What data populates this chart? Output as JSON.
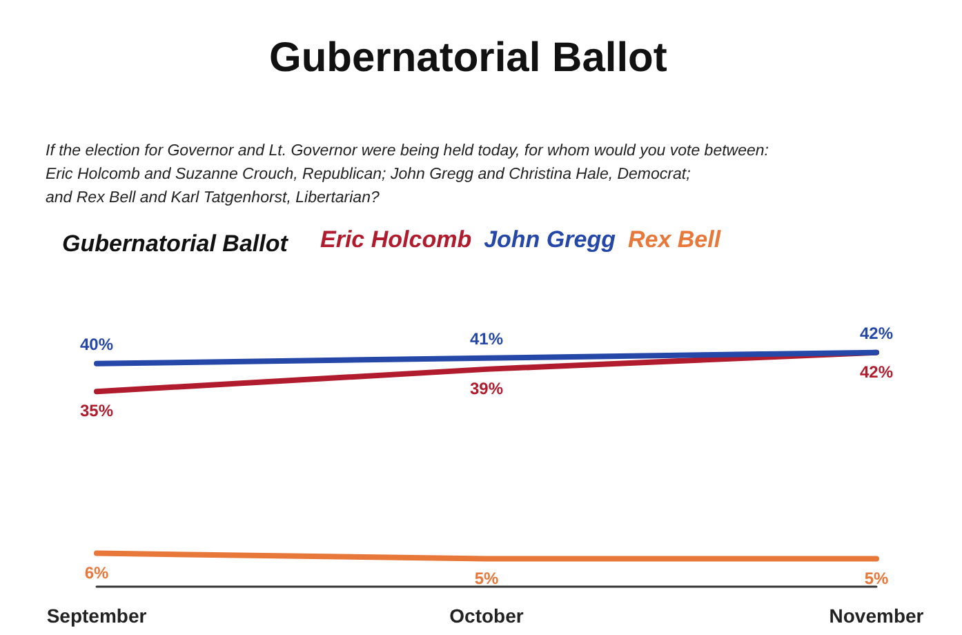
{
  "chart_data": {
    "type": "line",
    "title": "Gubernatorial Ballot",
    "subtitle": "If the election for Governor and Lt. Governor were being held today, for whom would you vote between:\nEric Holcomb and Suzanne Crouch, Republican; John Gregg and Christina Hale, Democrat;\nand Rex Bell and Karl Tatgenhorst, Libertarian?",
    "legend_title": "Gubernatorial Ballot",
    "legend": "top",
    "categories": [
      "September",
      "October",
      "November"
    ],
    "series": [
      {
        "name": "Eric Holcomb",
        "color": "#b01c2e",
        "values": [
          35,
          39,
          42
        ],
        "value_labels": [
          "35%",
          "39%",
          "42%"
        ]
      },
      {
        "name": "John Gregg",
        "color": "#2548a8",
        "values": [
          40,
          41,
          42
        ],
        "value_labels": [
          "40%",
          "41%",
          "42%"
        ]
      },
      {
        "name": "Rex Bell",
        "color": "#e8773a",
        "values": [
          6,
          5,
          5
        ],
        "value_labels": [
          "6%",
          "5%",
          "5%"
        ]
      }
    ],
    "marker": "none",
    "line_style": "solid",
    "grid": false
  }
}
